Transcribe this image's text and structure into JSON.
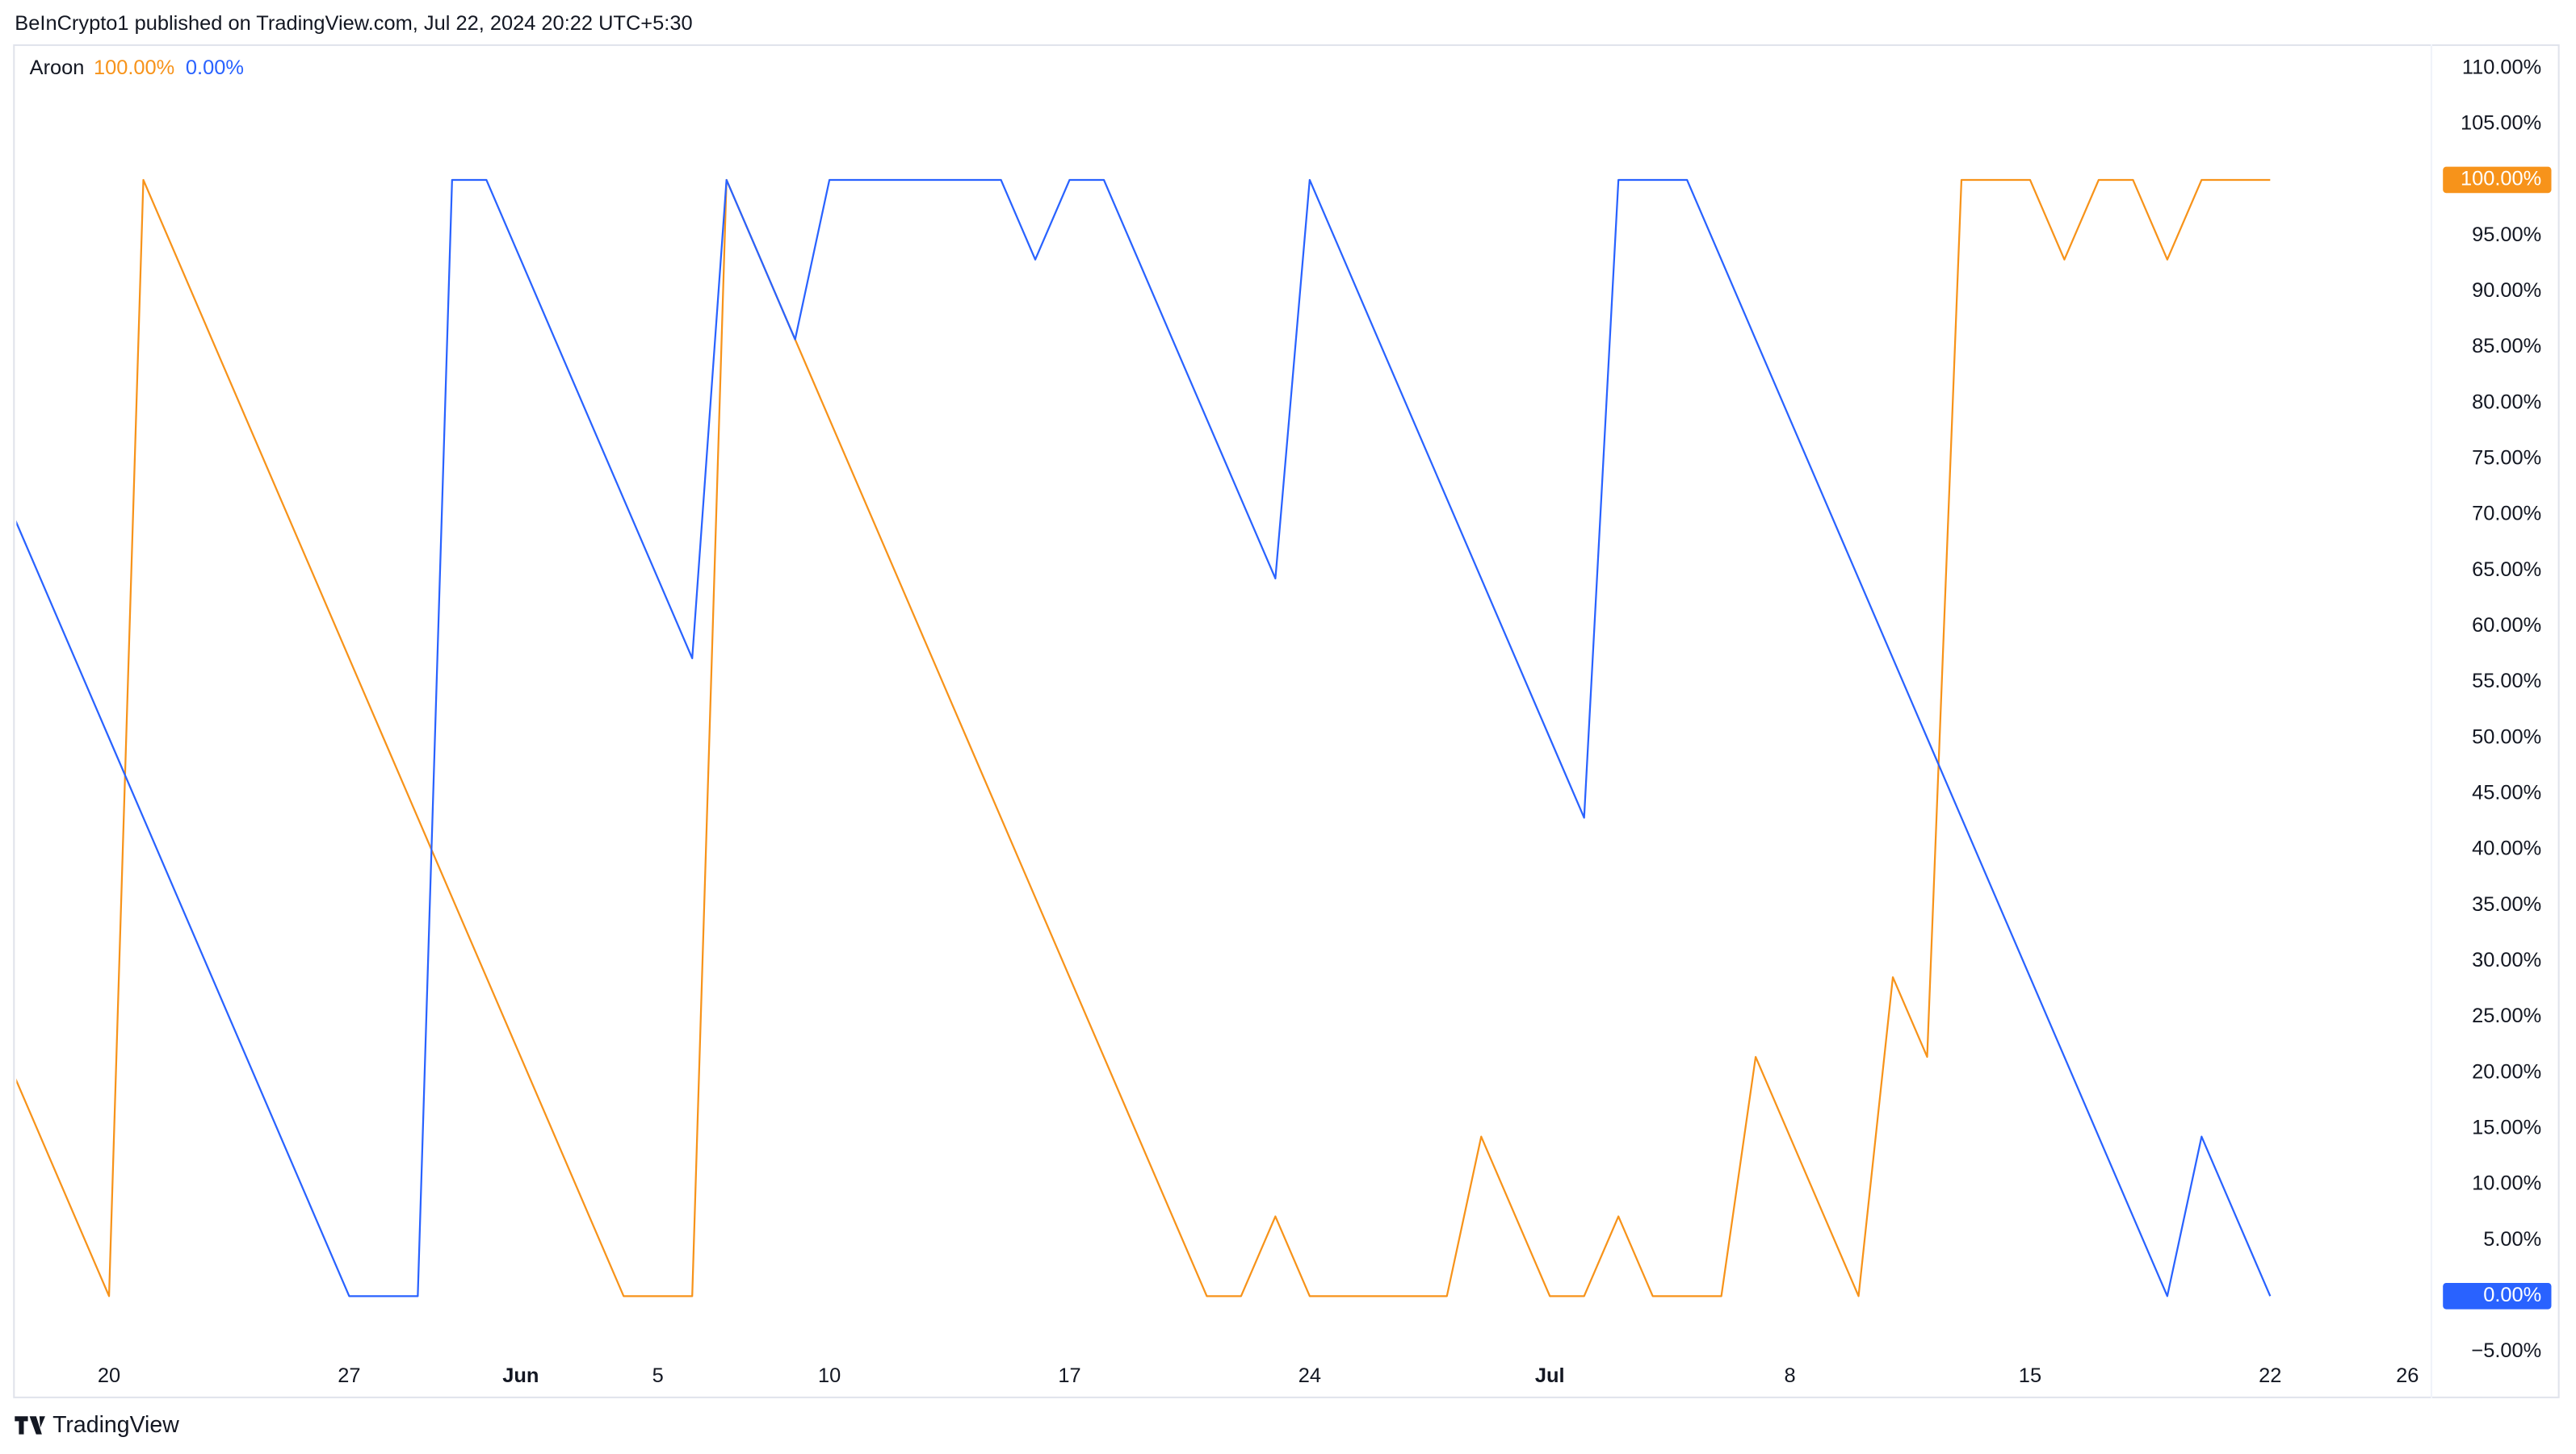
{
  "header": {
    "attribution": "BeInCrypto1 published on TradingView.com, Jul 22, 2024 20:22 UTC+5:30"
  },
  "footer": {
    "brand": "TradingView"
  },
  "chart_data": {
    "type": "line",
    "indicator": "Aroon",
    "x": [
      17,
      18,
      19,
      20,
      21,
      22,
      23,
      24,
      25,
      26,
      27,
      28,
      29,
      30,
      31,
      32,
      33,
      34,
      35,
      36,
      37,
      38,
      39,
      40,
      41,
      42,
      43,
      44,
      45,
      46,
      47,
      48,
      49,
      50,
      51,
      52,
      53,
      54,
      55,
      56,
      57,
      58,
      59,
      60,
      61,
      62,
      63,
      64,
      65,
      66,
      67,
      68,
      69,
      70,
      71,
      72,
      73,
      74,
      75,
      76,
      77,
      78,
      79,
      80,
      81,
      82,
      83
    ],
    "series": [
      {
        "color": "#f7931a",
        "last_label": "100.00%",
        "values": [
          21.43,
          14.29,
          7.14,
          0,
          100,
          92.86,
          85.71,
          78.57,
          71.43,
          64.29,
          57.14,
          50,
          42.86,
          35.71,
          28.57,
          21.43,
          14.29,
          7.14,
          0,
          0,
          0,
          100,
          92.86,
          85.71,
          78.57,
          71.43,
          64.29,
          57.14,
          50,
          42.86,
          35.71,
          28.57,
          21.43,
          14.29,
          7.14,
          0,
          0,
          7.14,
          0,
          0,
          0,
          0,
          0,
          14.29,
          7.14,
          0,
          0,
          7.14,
          0,
          0,
          0,
          21.43,
          14.29,
          7.14,
          0,
          28.57,
          21.43,
          100,
          100,
          100,
          92.86,
          100,
          100,
          92.86,
          100,
          100,
          100
        ]
      },
      {
        "color": "#2962ff",
        "last_label": "0.00%",
        "values": [
          71.43,
          64.29,
          57.14,
          50,
          42.86,
          35.71,
          28.57,
          21.43,
          14.29,
          7.14,
          0,
          0,
          0,
          100,
          100,
          92.86,
          85.71,
          78.57,
          71.43,
          64.29,
          57.14,
          100,
          92.86,
          85.71,
          100,
          100,
          100,
          100,
          100,
          100,
          92.86,
          100,
          100,
          92.86,
          85.71,
          78.57,
          71.43,
          64.29,
          100,
          92.86,
          85.71,
          78.57,
          71.43,
          64.29,
          57.14,
          50,
          42.86,
          100,
          100,
          100,
          92.86,
          85.71,
          78.57,
          71.43,
          64.29,
          57.14,
          50,
          42.86,
          35.71,
          28.57,
          21.43,
          14.29,
          7.14,
          0,
          14.29,
          7.14,
          0
        ]
      }
    ],
    "xlim": [
      17.3,
      87.7
    ],
    "xticks": [
      20,
      27,
      {
        "value": 32,
        "label": "Jun"
      },
      {
        "value": 36,
        "label": "5"
      },
      {
        "value": 41,
        "label": "10"
      },
      {
        "value": 48,
        "label": "17"
      },
      {
        "value": 55,
        "label": "24"
      },
      {
        "value": 62,
        "label": "Jul"
      },
      {
        "value": 69,
        "label": "8"
      },
      {
        "value": 76,
        "label": "15"
      },
      {
        "value": 83,
        "label": "22"
      },
      {
        "value": 87,
        "label": "26"
      }
    ],
    "ylim": [
      -9,
      112
    ],
    "yticks": [
      {
        "value": 110,
        "label": "110.00%"
      },
      {
        "value": 105,
        "label": "105.00%"
      },
      {
        "value": 95,
        "label": "95.00%"
      },
      {
        "value": 90,
        "label": "90.00%"
      },
      {
        "value": 85,
        "label": "85.00%"
      },
      {
        "value": 80,
        "label": "80.00%"
      },
      {
        "value": 75,
        "label": "75.00%"
      },
      {
        "value": 70,
        "label": "70.00%"
      },
      {
        "value": 65,
        "label": "65.00%"
      },
      {
        "value": 60,
        "label": "60.00%"
      },
      {
        "value": 55,
        "label": "55.00%"
      },
      {
        "value": 50,
        "label": "50.00%"
      },
      {
        "value": 45,
        "label": "45.00%"
      },
      {
        "value": 40,
        "label": "40.00%"
      },
      {
        "value": 35,
        "label": "35.00%"
      },
      {
        "value": 30,
        "label": "30.00%"
      },
      {
        "value": 25,
        "label": "25.00%"
      },
      {
        "value": 20,
        "label": "20.00%"
      },
      {
        "value": 15,
        "label": "15.00%"
      },
      {
        "value": 10,
        "label": "10.00%"
      },
      {
        "value": 5,
        "label": "5.00%"
      },
      {
        "value": -5,
        "label": "−5.00%"
      }
    ]
  }
}
